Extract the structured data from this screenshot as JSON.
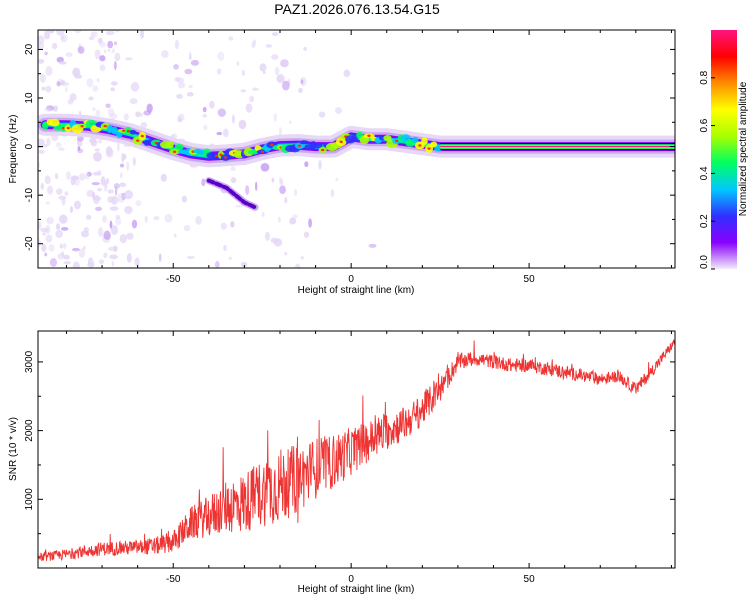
{
  "page_title": "PAZ1.2026.076.13.54.G15",
  "chart_data": [
    {
      "type": "heatmap",
      "title": "PAZ1.2026.076.13.54.G15",
      "xlabel": "Height of straight line (km)",
      "ylabel": "Frequency (Hz)",
      "xlim": [
        -88,
        91
      ],
      "ylim": [
        -25,
        24
      ],
      "xticks": [
        -50,
        0,
        50
      ],
      "xtick_labels": [
        "-50",
        "0",
        "50"
      ],
      "yticks": [
        -20,
        -10,
        0,
        10,
        20
      ],
      "ytick_labels": [
        "-20",
        "-10",
        "0",
        "10",
        "20"
      ],
      "colorbar": {
        "label": "Normalized spectral amplitude",
        "range": [
          0,
          1
        ],
        "ticks": [
          0,
          0.2,
          0.4,
          0.6,
          0.8
        ],
        "tick_labels": [
          "0.0",
          "0.2",
          "0.4",
          "0.6",
          "0.8"
        ],
        "colors": [
          "#f2ecf8",
          "#8a00ff",
          "#3030ff",
          "#00c8ff",
          "#00ff60",
          "#a8ff00",
          "#ffff00",
          "#ff8c00",
          "#ff0000",
          "#ff1480"
        ]
      },
      "main_trace": [
        {
          "x": -86,
          "f": 4.5
        },
        {
          "x": -80,
          "f": 4.5
        },
        {
          "x": -74,
          "f": 4.2
        },
        {
          "x": -68,
          "f": 3.5
        },
        {
          "x": -62,
          "f": 2.5
        },
        {
          "x": -56,
          "f": 1.0
        },
        {
          "x": -50,
          "f": -0.5
        },
        {
          "x": -45,
          "f": -1.5
        },
        {
          "x": -40,
          "f": -2.0
        },
        {
          "x": -35,
          "f": -1.8
        },
        {
          "x": -30,
          "f": -1.5
        },
        {
          "x": -25,
          "f": -0.5
        },
        {
          "x": -20,
          "f": 0.2
        },
        {
          "x": -15,
          "f": 0.3
        },
        {
          "x": -10,
          "f": 0.0
        },
        {
          "x": -5,
          "f": 0.0
        },
        {
          "x": 0,
          "f": 2.0
        },
        {
          "x": 5,
          "f": 1.5
        },
        {
          "x": 10,
          "f": 1.5
        },
        {
          "x": 15,
          "f": 1.0
        },
        {
          "x": 20,
          "f": 0.5
        },
        {
          "x": 25,
          "f": 0.0
        },
        {
          "x": 91,
          "f": 0.0
        }
      ],
      "secondary_trace": [
        {
          "x": -40,
          "f": -7.0
        },
        {
          "x": -35,
          "f": -8.5
        },
        {
          "x": -30,
          "f": -11.5
        },
        {
          "x": -27,
          "f": -12.5
        }
      ]
    },
    {
      "type": "line",
      "xlabel": "Height of straight line (km)",
      "ylabel": "SNR (10 * v/v)",
      "xlim": [
        -88,
        91
      ],
      "ylim": [
        0,
        3450
      ],
      "xticks": [
        -50,
        0,
        50
      ],
      "xtick_labels": [
        "-50",
        "0",
        "50"
      ],
      "yticks": [
        1000,
        2000,
        3000
      ],
      "ytick_labels": [
        "1000",
        "2000",
        "3000"
      ],
      "color": "#ee3333",
      "series": [
        {
          "name": "SNR",
          "x": [
            -88,
            -80,
            -70,
            -60,
            -55,
            -50,
            -45,
            -40,
            -35,
            -30,
            -25,
            -20,
            -15,
            -10,
            -5,
            0,
            5,
            10,
            15,
            20,
            25,
            30,
            35,
            40,
            45,
            50,
            55,
            60,
            65,
            70,
            75,
            80,
            85,
            91
          ],
          "y": [
            150,
            200,
            280,
            300,
            320,
            380,
            650,
            750,
            900,
            950,
            1100,
            1200,
            1300,
            1450,
            1550,
            1700,
            1850,
            2000,
            2100,
            2300,
            2600,
            3000,
            3050,
            3000,
            2950,
            2950,
            2900,
            2850,
            2800,
            2750,
            2800,
            2600,
            2900,
            3300
          ],
          "noise_amplitude": [
            60,
            80,
            100,
            110,
            130,
            160,
            240,
            300,
            400,
            450,
            500,
            550,
            500,
            450,
            400,
            350,
            300,
            280,
            250,
            230,
            200,
            120,
            110,
            100,
            100,
            100,
            100,
            100,
            90,
            90,
            90,
            90,
            90,
            60
          ]
        }
      ]
    }
  ]
}
